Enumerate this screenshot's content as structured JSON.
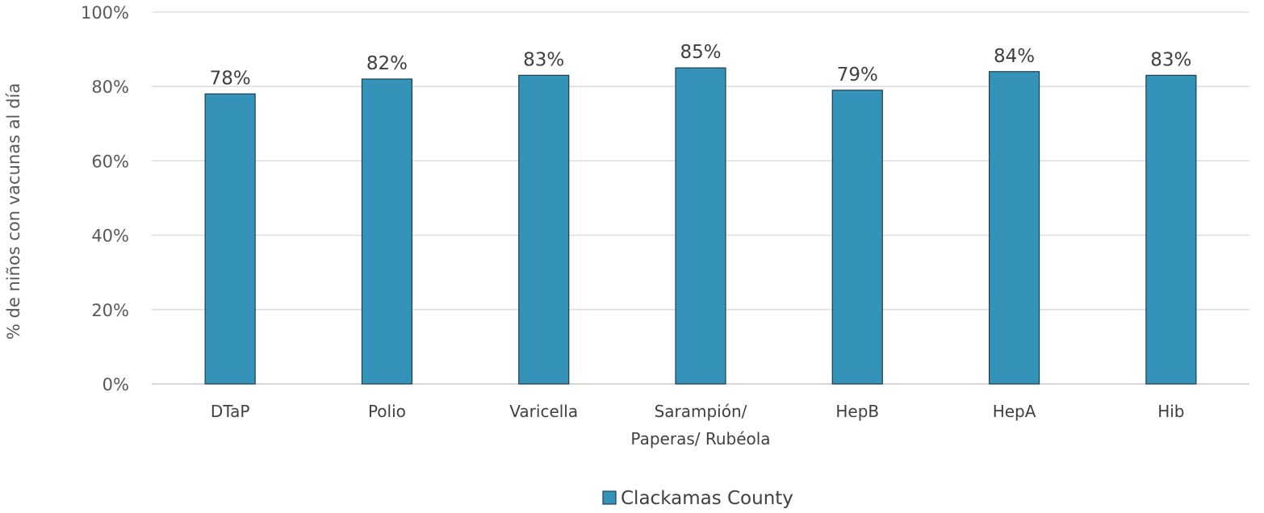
{
  "chart_data": {
    "type": "bar",
    "categories": [
      [
        "DTaP"
      ],
      [
        "Polio"
      ],
      [
        "Varicella"
      ],
      [
        "Sarampión/",
        "Paperas/ Rubéola"
      ],
      [
        "HepB"
      ],
      [
        "HepA"
      ],
      [
        "Hib"
      ]
    ],
    "series": [
      {
        "name": "Clackamas County",
        "values": [
          78,
          82,
          83,
          85,
          79,
          84,
          83
        ],
        "data_labels": [
          "78%",
          "82%",
          "83%",
          "85%",
          "79%",
          "84%",
          "83%"
        ]
      }
    ],
    "ylabel": "% de niños con vacunas al día",
    "ylim": [
      0,
      100
    ],
    "yticks": [
      0,
      20,
      40,
      60,
      80,
      100
    ],
    "ytick_labels": [
      "0%",
      "20%",
      "40%",
      "60%",
      "80%",
      "100%"
    ],
    "grid": true,
    "legend_position": "bottom",
    "colors": {
      "bar_fill": "#3592B8",
      "bar_stroke": "#1F3F4C",
      "gridline": "#D9D9D9",
      "axis_line": "#BFBFBF"
    }
  }
}
